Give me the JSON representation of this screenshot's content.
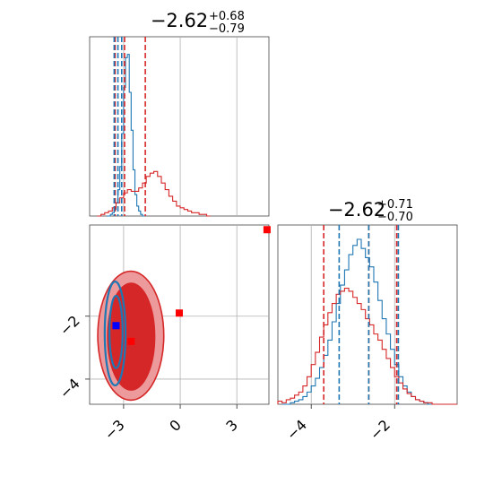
{
  "chart_data": {
    "type": "corner",
    "params": [
      "param0",
      "param1"
    ],
    "colors": {
      "blue": "#1f77b4",
      "red": "#d62728",
      "grid": "#b0b0b0",
      "marker_blue": "#0000ff",
      "marker_red": "#ff0000"
    },
    "panels": [
      {
        "id": "hist-1d-top",
        "type": "histogram",
        "title": {
          "median": "−2.62",
          "plus": "+0.68",
          "minus": "−0.79"
        },
        "xlim": [
          -4.8,
          4.7
        ],
        "xgrid": [
          -3,
          0,
          3
        ],
        "series": [
          {
            "color": "blue",
            "bins_start": -3.9,
            "bin_width": 0.1,
            "counts": [
              0,
              0,
              1,
              2,
              4,
              8,
              16,
              30,
              50,
              78,
              96,
              98,
              75,
              52,
              28,
              13,
              6,
              3,
              1,
              0
            ]
          },
          {
            "color": "red",
            "bins_start": -4.4,
            "bin_width": 0.2,
            "counts": [
              0,
              1,
              2,
              3,
              5,
              8,
              11,
              14,
              16,
              15,
              15,
              17,
              20,
              24,
              26,
              27,
              24,
              20,
              16,
              12,
              9,
              6,
              5,
              4,
              3,
              2,
              2,
              1,
              1,
              0
            ]
          }
        ],
        "quantiles_blue": [
          -3.5,
          -3.3,
          -3.1
        ],
        "quantiles_red": [
          -3.45,
          -2.95,
          -1.85
        ]
      },
      {
        "id": "scatter-2d",
        "type": "contour",
        "xlim": [
          -4.8,
          4.7
        ],
        "ylim": [
          -4.8,
          0.9
        ],
        "xticks": [
          -3,
          0,
          3
        ],
        "yticks": [
          -2,
          -4
        ],
        "xgrid": [
          -3,
          0,
          3
        ],
        "ygrid": [
          -2,
          -4
        ],
        "red_contours": [
          {
            "cx": -2.62,
            "cy": -2.62,
            "rx": 1.75,
            "ry": 2.05,
            "level": "outer"
          },
          {
            "cx": -2.6,
            "cy": -2.65,
            "rx": 1.25,
            "ry": 1.7,
            "level": "inner"
          }
        ],
        "blue_contours": [
          {
            "cx": -3.45,
            "cy": -2.55,
            "rx": 0.55,
            "ry": 1.65,
            "level": "outer"
          },
          {
            "cx": -3.4,
            "cy": -2.5,
            "rx": 0.35,
            "ry": 1.15,
            "level": "inner"
          }
        ],
        "markers": [
          {
            "x": -3.4,
            "y": -2.3,
            "color": "marker_blue"
          },
          {
            "x": -2.6,
            "y": -2.8,
            "color": "marker_red"
          },
          {
            "x": -0.05,
            "y": -1.9,
            "color": "marker_red"
          },
          {
            "x": 4.6,
            "y": 0.75,
            "color": "marker_red"
          }
        ]
      },
      {
        "id": "hist-1d-bottom",
        "type": "histogram",
        "title": {
          "median": "−2.62",
          "plus": "+0.71",
          "minus": "−0.70"
        },
        "xlim": [
          -4.8,
          -0.5
        ],
        "xticks": [
          -4,
          -2
        ],
        "xgrid": [
          -4,
          -2
        ],
        "series": [
          {
            "color": "blue",
            "bins_start": -4.7,
            "bin_width": 0.1,
            "counts": [
              0,
              0,
              1,
              2,
              3,
              5,
              8,
              12,
              17,
              24,
              32,
              42,
              54,
              66,
              78,
              88,
              98,
              104,
              108,
              102,
              96,
              90,
              80,
              68,
              56,
              46,
              36,
              26,
              18,
              12,
              8,
              5,
              3,
              2,
              1,
              0,
              0,
              0,
              0,
              0
            ]
          },
          {
            "color": "red",
            "bins_start": -4.8,
            "bin_width": 0.1,
            "counts": [
              2,
              1,
              3,
              4,
              6,
              8,
              12,
              18,
              26,
              34,
              44,
              52,
              60,
              66,
              72,
              74,
              76,
              74,
              70,
              66,
              62,
              56,
              52,
              46,
              42,
              36,
              30,
              24,
              18,
              14,
              10,
              7,
              5,
              3,
              2,
              1,
              1,
              0,
              0,
              0,
              0,
              0,
              0
            ]
          }
        ],
        "quantiles_blue": [
          -3.33,
          -2.62,
          -1.91
        ],
        "quantiles_red": [
          -3.7,
          -2.62,
          -1.95
        ]
      }
    ]
  },
  "labels": {
    "top_title_median": "−2.62",
    "top_title_plus": "+0.68",
    "top_title_minus": "−0.79",
    "bottom_title_median": "−2.62",
    "bottom_title_plus": "+0.71",
    "bottom_title_minus": "−0.70"
  }
}
